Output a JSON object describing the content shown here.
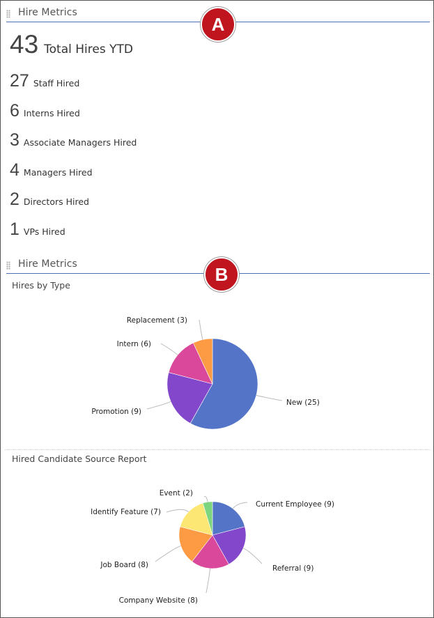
{
  "panel_a": {
    "title": "Hire Metrics",
    "badge": "A",
    "total": {
      "value": "43",
      "label": "Total Hires YTD"
    },
    "metrics": [
      {
        "value": "27",
        "label": "Staff Hired"
      },
      {
        "value": "6",
        "label": "Interns Hired"
      },
      {
        "value": "3",
        "label": "Associate Managers Hired"
      },
      {
        "value": "4",
        "label": "Managers Hired"
      },
      {
        "value": "2",
        "label": "Directors Hired"
      },
      {
        "value": "1",
        "label": "VPs Hired"
      }
    ]
  },
  "panel_b": {
    "title": "Hire Metrics",
    "badge": "B"
  },
  "chart_data": [
    {
      "type": "pie",
      "title": "Hires by Type",
      "slices": [
        {
          "label": "New (25)",
          "value": 25,
          "color": "#5474c8"
        },
        {
          "label": "Promotion (9)",
          "value": 9,
          "color": "#8347cc"
        },
        {
          "label": "Intern (6)",
          "value": 6,
          "color": "#d9489a"
        },
        {
          "label": "Replacement (3)",
          "value": 3,
          "color": "#fd9a44"
        }
      ]
    },
    {
      "type": "pie",
      "title": "Hired Candidate Source Report",
      "slices": [
        {
          "label": "Current Employee (9)",
          "value": 9,
          "color": "#5474c8"
        },
        {
          "label": "Referral (9)",
          "value": 9,
          "color": "#8347cc"
        },
        {
          "label": "Company Website (8)",
          "value": 8,
          "color": "#d9489a"
        },
        {
          "label": "Job Board (8)",
          "value": 8,
          "color": "#fd9a44"
        },
        {
          "label": "Identify Feature (7)",
          "value": 7,
          "color": "#fde774"
        },
        {
          "label": "Event (2)",
          "value": 2,
          "color": "#7ed580"
        }
      ]
    }
  ]
}
